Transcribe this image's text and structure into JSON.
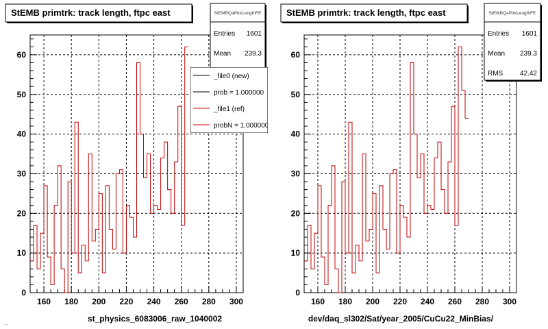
{
  "footer_text": "...",
  "chart_data": [
    {
      "type": "histogram",
      "title": "StEMB primtrk: track length, ftpc east",
      "xlabel": "st_physics_6083006_raw_1040002",
      "xlim": [
        150,
        305
      ],
      "ylim": [
        0,
        65
      ],
      "xticks": [
        160,
        180,
        200,
        220,
        240,
        260,
        280,
        300
      ],
      "yticks": [
        0,
        10,
        20,
        30,
        40,
        50,
        60
      ],
      "grid": true,
      "stats": {
        "name": "StEMBQaPtrkLengthFE",
        "rows": [
          {
            "label": "Entries",
            "value": "1601"
          },
          {
            "label": "Mean",
            "value": "239.3"
          }
        ]
      },
      "legend": {
        "placement": "top-right",
        "entries": [
          {
            "label": "_file0 (new)",
            "color": "#000000"
          },
          {
            "label": "prob = 1.000000",
            "color": "#000000"
          },
          {
            "label": "_file1 (ref)",
            "color": "#d40000"
          },
          {
            "label": "probN = 1.000000",
            "color": "#d40000"
          }
        ]
      },
      "series": [
        {
          "color": "#c00000",
          "bin_start": 150,
          "bin_width": 2.5,
          "values": [
            8,
            17,
            6,
            15,
            27,
            9,
            2,
            22,
            32,
            6,
            0,
            28,
            10,
            43,
            5,
            12,
            8,
            35,
            13,
            16,
            25,
            5,
            27,
            16,
            11,
            30,
            31,
            10,
            22,
            19,
            14,
            58,
            40,
            29,
            35,
            20,
            22,
            21,
            34,
            38,
            26,
            20,
            33,
            47,
            17,
            62
          ]
        }
      ]
    },
    {
      "type": "histogram",
      "title": "StEMB primtrk: track length, ftpc east",
      "xlabel": "dev/daq_sl302/Sat/year_2005/CuCu22_MinBias/",
      "xlim": [
        150,
        305
      ],
      "ylim": [
        0,
        65
      ],
      "xticks": [
        160,
        180,
        200,
        220,
        240,
        260,
        280,
        300
      ],
      "yticks": [
        0,
        10,
        20,
        30,
        40,
        50,
        60
      ],
      "grid": true,
      "stats": {
        "name": "StEMBQaPtrkLengthFE",
        "rows": [
          {
            "label": "Entries",
            "value": "1601"
          },
          {
            "label": "Mean",
            "value": "239.3"
          },
          {
            "label": "RMS",
            "value": "42.42"
          }
        ]
      },
      "series": [
        {
          "color": "#c00000",
          "bin_start": 150,
          "bin_width": 2.5,
          "values": [
            8,
            17,
            6,
            15,
            27,
            9,
            2,
            22,
            32,
            6,
            0,
            28,
            10,
            43,
            5,
            12,
            8,
            35,
            13,
            16,
            25,
            5,
            27,
            16,
            11,
            30,
            31,
            10,
            22,
            19,
            14,
            58,
            40,
            29,
            35,
            20,
            22,
            21,
            34,
            38,
            26,
            20,
            33,
            47,
            17,
            62,
            51,
            44
          ]
        }
      ]
    }
  ]
}
